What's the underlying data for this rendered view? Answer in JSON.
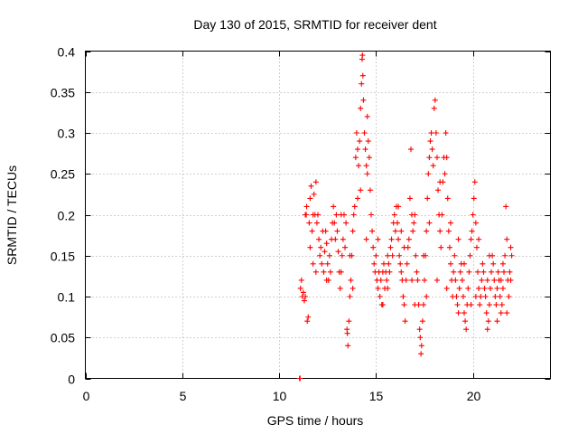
{
  "chart_data": {
    "type": "scatter",
    "title": "Day 130 of 2015, SRMTID for receiver dent",
    "xlabel": "GPS time / hours",
    "ylabel": "SRMTID / TECUs",
    "xlim": [
      0,
      24
    ],
    "ylim": [
      0,
      0.4
    ],
    "xticks": [
      0,
      5,
      10,
      15,
      20
    ],
    "xtick_labels": [
      "0",
      "5",
      "10",
      "15",
      "20"
    ],
    "yticks": [
      0,
      0.05,
      0.1,
      0.15,
      0.2,
      0.25,
      0.3,
      0.35,
      0.4
    ],
    "ytick_labels": [
      "0",
      "0.05",
      "0.1",
      "0.15",
      "0.2",
      "0.25",
      "0.3",
      "0.35",
      "0.4"
    ],
    "grid": true,
    "marker": "plus",
    "color": "#ff0000",
    "series": [
      {
        "name": "SRMTID",
        "points": [
          [
            11.05,
            0.0
          ],
          [
            11.08,
            0.0
          ],
          [
            11.1,
            0.11
          ],
          [
            11.15,
            0.12
          ],
          [
            11.2,
            0.1
          ],
          [
            11.25,
            0.105
          ],
          [
            11.3,
            0.095
          ],
          [
            11.35,
            0.1
          ],
          [
            11.4,
            0.2
          ],
          [
            11.42,
            0.21
          ],
          [
            11.45,
            0.07
          ],
          [
            11.5,
            0.075
          ],
          [
            11.55,
            0.19
          ],
          [
            11.6,
            0.22
          ],
          [
            11.65,
            0.235
          ],
          [
            11.7,
            0.18
          ],
          [
            11.75,
            0.2
          ],
          [
            11.8,
            0.225
          ],
          [
            11.85,
            0.2
          ],
          [
            11.9,
            0.24
          ],
          [
            11.95,
            0.19
          ],
          [
            12.0,
            0.2
          ],
          [
            12.05,
            0.17
          ],
          [
            12.1,
            0.15
          ],
          [
            12.15,
            0.16
          ],
          [
            12.2,
            0.14
          ],
          [
            12.3,
            0.13
          ],
          [
            12.35,
            0.155
          ],
          [
            12.4,
            0.18
          ],
          [
            12.45,
            0.165
          ],
          [
            12.5,
            0.14
          ],
          [
            12.55,
            0.12
          ],
          [
            12.6,
            0.15
          ],
          [
            12.7,
            0.17
          ],
          [
            12.75,
            0.19
          ],
          [
            12.8,
            0.21
          ],
          [
            12.85,
            0.19
          ],
          [
            12.9,
            0.17
          ],
          [
            12.95,
            0.2
          ],
          [
            13.0,
            0.18
          ],
          [
            13.05,
            0.155
          ],
          [
            13.1,
            0.13
          ],
          [
            13.15,
            0.11
          ],
          [
            13.2,
            0.13
          ],
          [
            13.25,
            0.15
          ],
          [
            13.3,
            0.17
          ],
          [
            13.35,
            0.2
          ],
          [
            13.4,
            0.16
          ],
          [
            13.5,
            0.06
          ],
          [
            13.52,
            0.055
          ],
          [
            13.55,
            0.04
          ],
          [
            13.6,
            0.07
          ],
          [
            13.65,
            0.1
          ],
          [
            13.7,
            0.12
          ],
          [
            13.75,
            0.15
          ],
          [
            13.8,
            0.18
          ],
          [
            13.85,
            0.2
          ],
          [
            13.9,
            0.21
          ],
          [
            13.95,
            0.27
          ],
          [
            14.0,
            0.3
          ],
          [
            14.05,
            0.28
          ],
          [
            14.1,
            0.26
          ],
          [
            14.15,
            0.29
          ],
          [
            14.2,
            0.33
          ],
          [
            14.25,
            0.36
          ],
          [
            14.28,
            0.39
          ],
          [
            14.3,
            0.395
          ],
          [
            14.32,
            0.37
          ],
          [
            14.35,
            0.34
          ],
          [
            14.4,
            0.3
          ],
          [
            14.45,
            0.28
          ],
          [
            14.5,
            0.26
          ],
          [
            14.55,
            0.25
          ],
          [
            14.6,
            0.29
          ],
          [
            14.65,
            0.27
          ],
          [
            14.7,
            0.23
          ],
          [
            14.75,
            0.2
          ],
          [
            14.8,
            0.18
          ],
          [
            14.85,
            0.16
          ],
          [
            14.9,
            0.14
          ],
          [
            14.95,
            0.13
          ],
          [
            15.0,
            0.15
          ],
          [
            15.05,
            0.12
          ],
          [
            15.1,
            0.11
          ],
          [
            15.15,
            0.13
          ],
          [
            15.2,
            0.1
          ],
          [
            15.25,
            0.12
          ],
          [
            15.3,
            0.09
          ],
          [
            15.35,
            0.13
          ],
          [
            15.4,
            0.14
          ],
          [
            15.45,
            0.11
          ],
          [
            15.5,
            0.13
          ],
          [
            15.55,
            0.12
          ],
          [
            15.6,
            0.15
          ],
          [
            15.65,
            0.14
          ],
          [
            15.7,
            0.13
          ],
          [
            15.75,
            0.16
          ],
          [
            15.8,
            0.17
          ],
          [
            15.85,
            0.15
          ],
          [
            15.9,
            0.19
          ],
          [
            15.95,
            0.2
          ],
          [
            16.0,
            0.18
          ],
          [
            16.05,
            0.21
          ],
          [
            16.1,
            0.19
          ],
          [
            16.15,
            0.17
          ],
          [
            16.2,
            0.15
          ],
          [
            16.25,
            0.14
          ],
          [
            16.3,
            0.13
          ],
          [
            16.35,
            0.12
          ],
          [
            16.4,
            0.1
          ],
          [
            16.45,
            0.09
          ],
          [
            16.5,
            0.07
          ],
          [
            16.55,
            0.12
          ],
          [
            16.6,
            0.14
          ],
          [
            16.65,
            0.16
          ],
          [
            16.7,
            0.17
          ],
          [
            16.75,
            0.22
          ],
          [
            16.8,
            0.28
          ],
          [
            16.85,
            0.2
          ],
          [
            16.9,
            0.18
          ],
          [
            16.95,
            0.19
          ],
          [
            17.0,
            0.2
          ],
          [
            17.05,
            0.15
          ],
          [
            17.1,
            0.13
          ],
          [
            17.15,
            0.12
          ],
          [
            17.2,
            0.09
          ],
          [
            17.25,
            0.06
          ],
          [
            17.28,
            0.05
          ],
          [
            17.32,
            0.03
          ],
          [
            17.35,
            0.04
          ],
          [
            17.4,
            0.07
          ],
          [
            17.45,
            0.09
          ],
          [
            17.5,
            0.12
          ],
          [
            17.55,
            0.15
          ],
          [
            17.6,
            0.18
          ],
          [
            17.65,
            0.22
          ],
          [
            17.7,
            0.25
          ],
          [
            17.75,
            0.27
          ],
          [
            17.8,
            0.29
          ],
          [
            17.85,
            0.3
          ],
          [
            17.9,
            0.28
          ],
          [
            17.95,
            0.26
          ],
          [
            18.0,
            0.33
          ],
          [
            18.05,
            0.34
          ],
          [
            18.1,
            0.3
          ],
          [
            18.15,
            0.27
          ],
          [
            18.2,
            0.23
          ],
          [
            18.25,
            0.2
          ],
          [
            18.3,
            0.18
          ],
          [
            18.35,
            0.16
          ],
          [
            18.4,
            0.2
          ],
          [
            18.45,
            0.24
          ],
          [
            18.5,
            0.27
          ],
          [
            18.55,
            0.25
          ],
          [
            18.6,
            0.3
          ],
          [
            18.65,
            0.27
          ],
          [
            18.7,
            0.22
          ],
          [
            18.75,
            0.18
          ],
          [
            18.8,
            0.16
          ],
          [
            18.85,
            0.14
          ],
          [
            18.9,
            0.12
          ],
          [
            18.95,
            0.1
          ],
          [
            19.0,
            0.13
          ],
          [
            19.05,
            0.15
          ],
          [
            19.1,
            0.12
          ],
          [
            19.15,
            0.1
          ],
          [
            19.2,
            0.09
          ],
          [
            19.25,
            0.08
          ],
          [
            19.3,
            0.11
          ],
          [
            19.35,
            0.13
          ],
          [
            19.4,
            0.14
          ],
          [
            19.45,
            0.12
          ],
          [
            19.5,
            0.1
          ],
          [
            19.55,
            0.08
          ],
          [
            19.6,
            0.07
          ],
          [
            19.65,
            0.06
          ],
          [
            19.7,
            0.09
          ],
          [
            19.75,
            0.11
          ],
          [
            19.8,
            0.13
          ],
          [
            19.85,
            0.15
          ],
          [
            19.9,
            0.17
          ],
          [
            19.95,
            0.18
          ],
          [
            20.0,
            0.2
          ],
          [
            20.05,
            0.22
          ],
          [
            20.1,
            0.24
          ],
          [
            20.15,
            0.19
          ],
          [
            20.2,
            0.16
          ],
          [
            20.25,
            0.13
          ],
          [
            20.3,
            0.11
          ],
          [
            20.35,
            0.09
          ],
          [
            20.4,
            0.1
          ],
          [
            20.45,
            0.12
          ],
          [
            20.5,
            0.14
          ],
          [
            20.55,
            0.13
          ],
          [
            20.6,
            0.11
          ],
          [
            20.65,
            0.1
          ],
          [
            20.7,
            0.08
          ],
          [
            20.75,
            0.06
          ],
          [
            20.8,
            0.07
          ],
          [
            20.85,
            0.09
          ],
          [
            20.9,
            0.11
          ],
          [
            20.95,
            0.13
          ],
          [
            21.0,
            0.15
          ],
          [
            21.05,
            0.14
          ],
          [
            21.1,
            0.12
          ],
          [
            21.15,
            0.1
          ],
          [
            21.2,
            0.09
          ],
          [
            21.25,
            0.11
          ],
          [
            21.3,
            0.13
          ],
          [
            21.35,
            0.12
          ],
          [
            21.4,
            0.1
          ],
          [
            21.45,
            0.08
          ],
          [
            21.5,
            0.09
          ],
          [
            21.55,
            0.11
          ],
          [
            21.6,
            0.13
          ],
          [
            21.65,
            0.15
          ],
          [
            21.7,
            0.21
          ],
          [
            21.75,
            0.17
          ],
          [
            21.8,
            0.12
          ],
          [
            21.85,
            0.1
          ],
          [
            21.9,
            0.13
          ],
          [
            21.95,
            0.16
          ],
          [
            22.0,
            0.15
          ],
          [
            11.6,
            0.16
          ],
          [
            11.75,
            0.14
          ],
          [
            12.25,
            0.18
          ],
          [
            12.65,
            0.13
          ],
          [
            13.45,
            0.19
          ],
          [
            13.8,
            0.11
          ],
          [
            14.05,
            0.22
          ],
          [
            14.2,
            0.23
          ],
          [
            14.55,
            0.32
          ],
          [
            15.1,
            0.17
          ],
          [
            15.6,
            0.11
          ],
          [
            16.15,
            0.21
          ],
          [
            16.45,
            0.16
          ],
          [
            17.0,
            0.09
          ],
          [
            17.6,
            0.1
          ],
          [
            17.75,
            0.19
          ],
          [
            18.3,
            0.24
          ],
          [
            18.65,
            0.11
          ],
          [
            19.25,
            0.17
          ],
          [
            19.9,
            0.09
          ],
          [
            20.3,
            0.17
          ],
          [
            20.75,
            0.12
          ],
          [
            21.25,
            0.07
          ],
          [
            21.55,
            0.14
          ],
          [
            21.95,
            0.12
          ],
          [
            11.35,
            0.2
          ],
          [
            11.9,
            0.13
          ],
          [
            12.45,
            0.12
          ],
          [
            13.2,
            0.2
          ],
          [
            13.65,
            0.15
          ],
          [
            14.5,
            0.17
          ],
          [
            15.35,
            0.09
          ],
          [
            16.3,
            0.18
          ],
          [
            16.85,
            0.12
          ],
          [
            17.45,
            0.15
          ],
          [
            18.15,
            0.12
          ],
          [
            18.85,
            0.19
          ],
          [
            19.55,
            0.14
          ],
          [
            20.15,
            0.1
          ],
          [
            20.85,
            0.15
          ],
          [
            21.45,
            0.12
          ],
          [
            21.75,
            0.08
          ]
        ]
      }
    ]
  }
}
